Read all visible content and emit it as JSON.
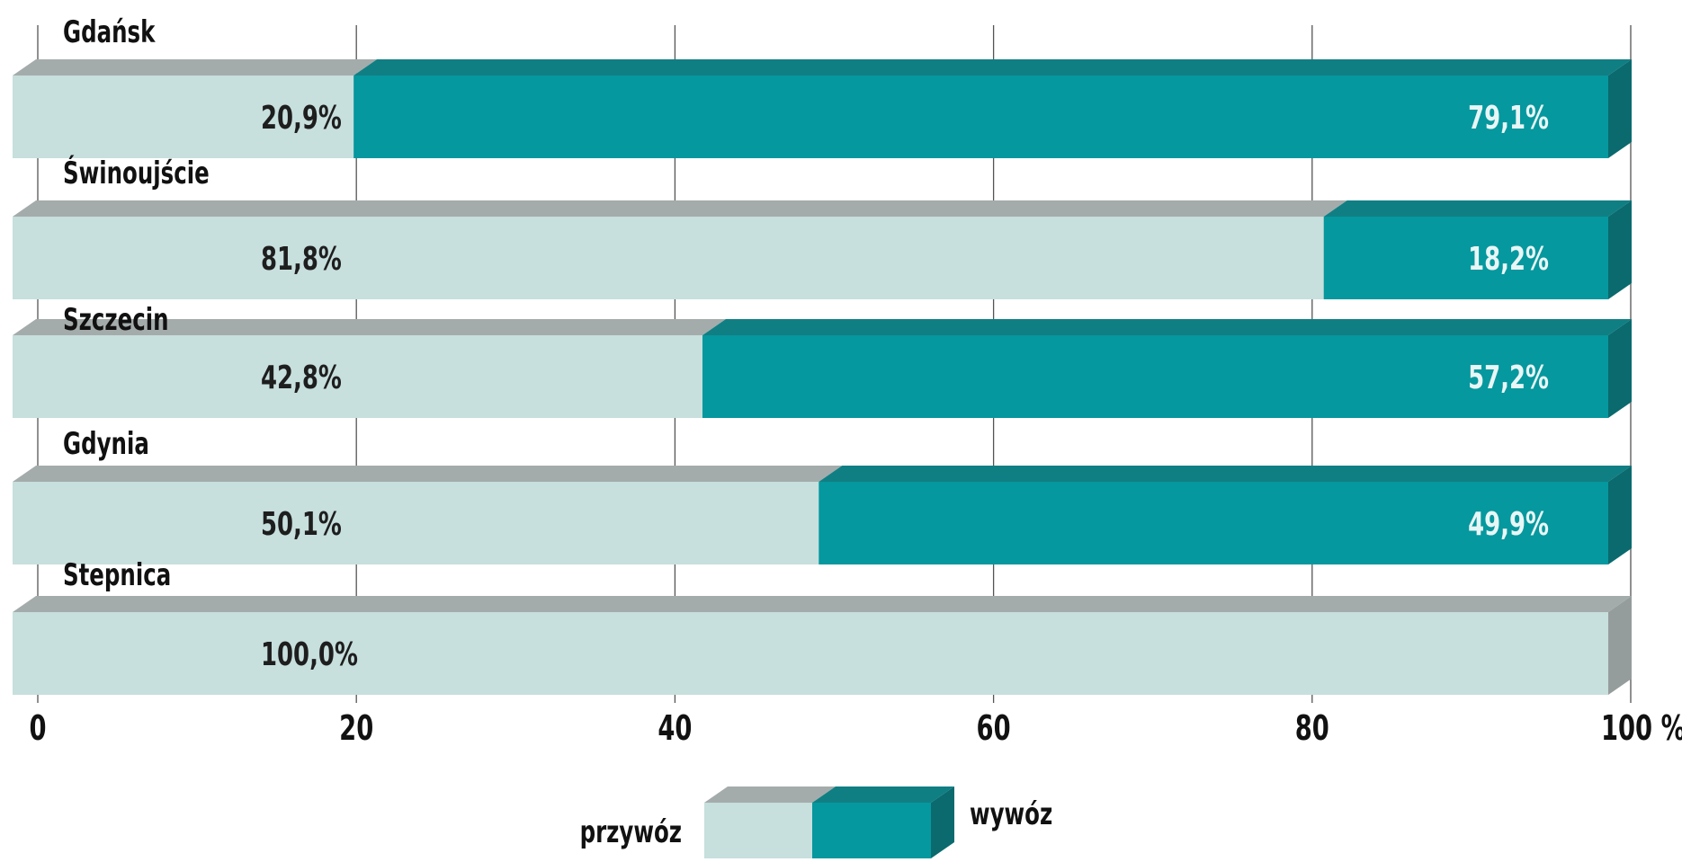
{
  "chart_data": {
    "type": "bar",
    "orientation": "horizontal",
    "stacked": true,
    "categories": [
      "Gdańsk",
      "Świnoujście",
      "Szczecin",
      "Gdynia",
      "Stepnica"
    ],
    "series": [
      {
        "name": "przywóz",
        "values": [
          20.9,
          81.8,
          42.8,
          50.1,
          100.0
        ],
        "labels": [
          "20,9%",
          "81,8%",
          "42,8%",
          "50,1%",
          "100,0%"
        ],
        "color": "#c7dfdd"
      },
      {
        "name": "wywóz",
        "values": [
          79.1,
          18.2,
          57.2,
          49.9,
          0
        ],
        "labels": [
          "79,1%",
          "18,2%",
          "57,2%",
          "49,9%",
          ""
        ],
        "color": "#05989e"
      }
    ],
    "xticks": [
      {
        "value": 0,
        "label": "0"
      },
      {
        "value": 20,
        "label": "20"
      },
      {
        "value": 40,
        "label": "40"
      },
      {
        "value": 60,
        "label": "60"
      },
      {
        "value": 80,
        "label": "80"
      },
      {
        "value": 100,
        "label": "100 %"
      }
    ],
    "xlim": [
      0,
      100
    ],
    "grid": true,
    "legend_position": "bottom-center",
    "colors": {
      "przywoz_face": "#c7dfdd",
      "przywoz_top": "#a4acab",
      "wywoz_face": "#05989e",
      "wywoz_top": "#107f84",
      "wywoz_side": "#0a6a6e",
      "przywoz_side": "#959d9c",
      "label_dark": "#1e1e1e",
      "label_light": "#e8f6f5",
      "grid": "#555555"
    }
  }
}
